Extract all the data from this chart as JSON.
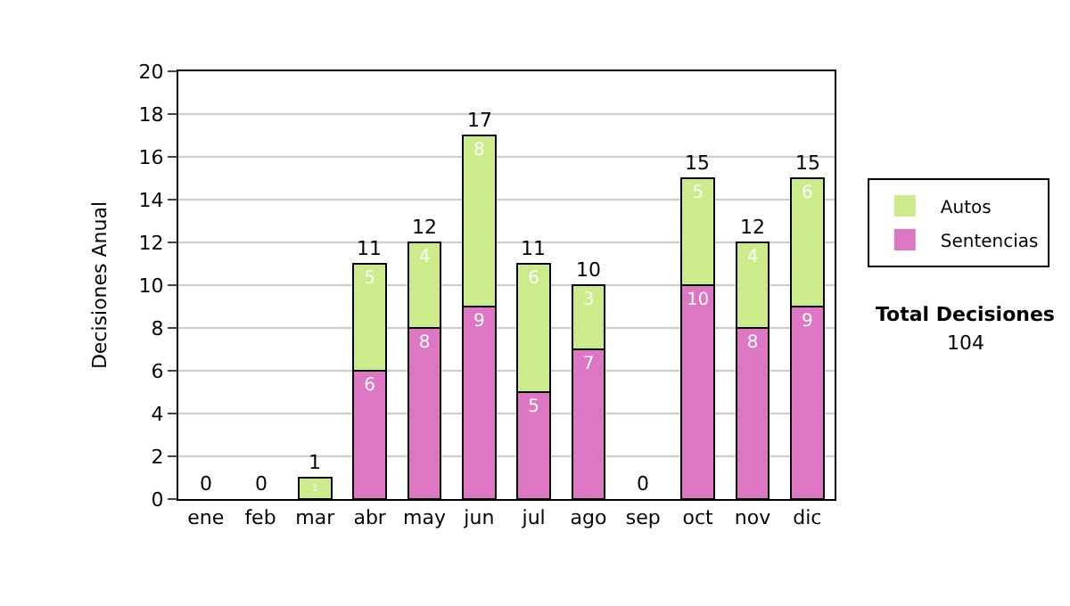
{
  "chart_data": {
    "type": "bar",
    "stacked": true,
    "ylabel": "Decisiones Anual",
    "categories": [
      "ene",
      "feb",
      "mar",
      "abr",
      "may",
      "jun",
      "jul",
      "ago",
      "sep",
      "oct",
      "nov",
      "dic"
    ],
    "series": [
      {
        "name": "Sentencias",
        "color": "#dd77c4",
        "values": [
          0,
          0,
          0,
          6,
          8,
          9,
          5,
          7,
          0,
          10,
          8,
          9
        ],
        "value_labels": [
          null,
          null,
          null,
          "6",
          "8",
          "9",
          "5",
          "7",
          null,
          "10",
          "8",
          "9"
        ]
      },
      {
        "name": "Autos",
        "color": "#ccec8c",
        "values": [
          0,
          0,
          1,
          5,
          4,
          8,
          6,
          3,
          0,
          5,
          4,
          6
        ],
        "value_labels": [
          null,
          null,
          "1",
          "5",
          "4",
          "8",
          "6",
          "3",
          null,
          "5",
          "4",
          "6"
        ]
      }
    ],
    "totals": [
      "0",
      "0",
      "1",
      "11",
      "12",
      "17",
      "11",
      "10",
      "0",
      "15",
      "12",
      "15"
    ],
    "ylim": [
      0,
      20
    ],
    "yticks": [
      0,
      2,
      4,
      6,
      8,
      10,
      12,
      14,
      16,
      18,
      20
    ],
    "grid": "y",
    "legend": "right",
    "annotations": [
      "Total Decisiones",
      "104"
    ]
  }
}
